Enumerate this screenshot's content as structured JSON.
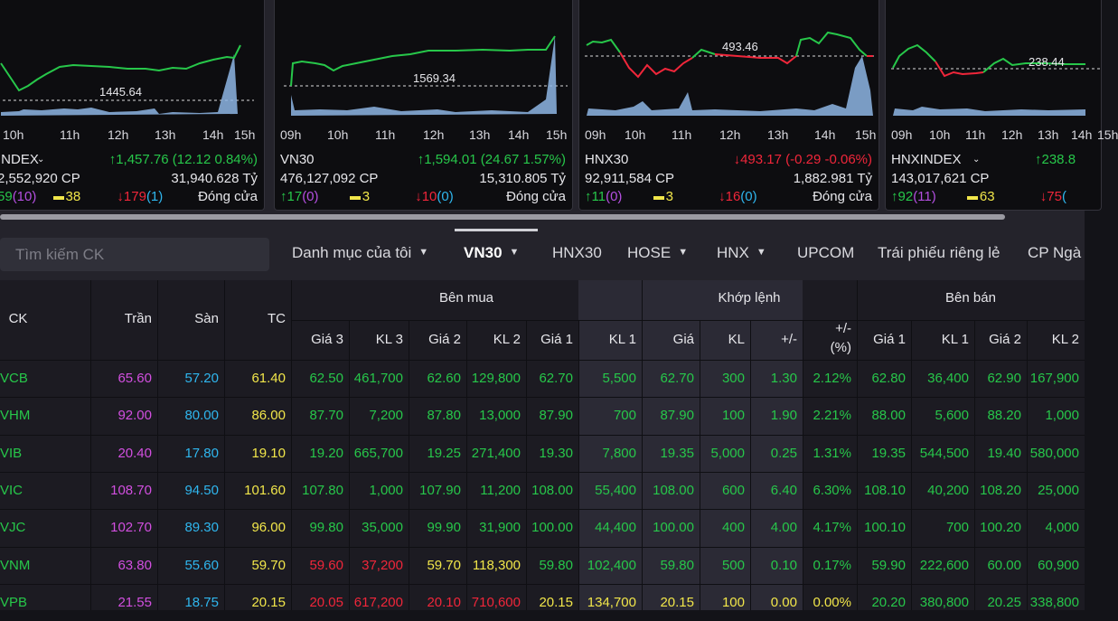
{
  "index_cards": [
    {
      "name": "INDEX",
      "times": [
        "10h",
        "11h",
        "12h",
        "13h",
        "14h",
        "15h"
      ],
      "ref_label": "1445.64",
      "change": "↑1,457.76 (12.12 0.84%)",
      "volume": "2,552,920 CP",
      "value": "31,940.628 Tỷ",
      "adv": "59",
      "adv_ceil": "(10)",
      "unch": "38",
      "dec": "↓179",
      "dec_floor": "(1)",
      "status": "Đóng cửa"
    },
    {
      "name": "VN30",
      "times": [
        "09h",
        "10h",
        "11h",
        "12h",
        "13h",
        "14h",
        "15h"
      ],
      "ref_label": "1569.34",
      "change": "↑1,594.01 (24.67 1.57%)",
      "volume": "476,127,092 CP",
      "value": "15,310.805 Tỷ",
      "adv": "↑17",
      "adv_ceil": "(0)",
      "unch": "3",
      "dec": "↓10",
      "dec_floor": "(0)",
      "status": "Đóng cửa"
    },
    {
      "name": "HNX30",
      "times": [
        "09h",
        "10h",
        "11h",
        "12h",
        "13h",
        "14h",
        "15h"
      ],
      "ref_label": "493.46",
      "change": "↓493.17 (-0.29 -0.06%)",
      "volume": "92,911,584 CP",
      "value": "1,882.981 Tỷ",
      "adv": "↑11",
      "adv_ceil": "(0)",
      "unch": "3",
      "dec": "↓16",
      "dec_floor": "(0)",
      "status": "Đóng cửa"
    },
    {
      "name": "HNXINDEX",
      "times": [
        "09h",
        "10h",
        "11h",
        "12h",
        "13h",
        "14h",
        "15h"
      ],
      "ref_label": "238.44",
      "change": "↑238.8",
      "volume": "143,017,621 CP",
      "value": "",
      "adv": "↑92",
      "adv_ceil": "(11)",
      "unch": "63",
      "dec": "↓75",
      "dec_floor": "(",
      "status": ""
    }
  ],
  "toolbar": {
    "search_placeholder": "Tìm kiếm CK",
    "tabs": [
      "Danh mục của tôi",
      "VN30",
      "HNX30",
      "HOSE",
      "HNX",
      "UPCOM",
      "Trái phiếu riêng lẻ",
      "CP Ngà"
    ]
  },
  "table": {
    "headers": {
      "ck": "CK",
      "ceil": "Trần",
      "floor": "Sàn",
      "ref": "TC",
      "buy_group": "Bên mua",
      "match_group": "Khớp lệnh",
      "sell_group": "Bên bán",
      "buy_cols": [
        "Giá 3",
        "KL 3",
        "Giá 2",
        "KL 2",
        "Giá 1",
        "KL 1"
      ],
      "match_cols": [
        "Giá",
        "KL",
        "+/-",
        "+/-",
        "(%)"
      ],
      "sell_cols": [
        "Giá 1",
        "KL 1",
        "Giá 2",
        "KL 2"
      ]
    },
    "rows": [
      {
        "sym": "VCB",
        "ceil": "65.60",
        "floor": "57.20",
        "ref": "61.40",
        "buy": [
          "62.50",
          "461,700",
          "62.60",
          "129,800",
          "62.70",
          "5,500"
        ],
        "match": [
          "62.70",
          "300",
          "1.30",
          "2.12%"
        ],
        "sell": [
          "62.80",
          "36,400",
          "62.90",
          "167,900"
        ],
        "color": "up",
        "buy_colors": [
          "up",
          "up",
          "up",
          "up",
          "up",
          "up"
        ],
        "match_color": "up",
        "sell_colors": [
          "up",
          "up",
          "up",
          "up"
        ]
      },
      {
        "sym": "VHM",
        "ceil": "92.00",
        "floor": "80.00",
        "ref": "86.00",
        "buy": [
          "87.70",
          "7,200",
          "87.80",
          "13,000",
          "87.90",
          "700"
        ],
        "match": [
          "87.90",
          "100",
          "1.90",
          "2.21%"
        ],
        "sell": [
          "88.00",
          "5,600",
          "88.20",
          "1,000"
        ],
        "color": "up",
        "buy_colors": [
          "up",
          "up",
          "up",
          "up",
          "up",
          "up"
        ],
        "match_color": "up",
        "sell_colors": [
          "up",
          "up",
          "up",
          "up"
        ]
      },
      {
        "sym": "VIB",
        "ceil": "20.40",
        "floor": "17.80",
        "ref": "19.10",
        "buy": [
          "19.20",
          "665,700",
          "19.25",
          "271,400",
          "19.30",
          "7,800"
        ],
        "match": [
          "19.35",
          "5,000",
          "0.25",
          "1.31%"
        ],
        "sell": [
          "19.35",
          "544,500",
          "19.40",
          "580,000"
        ],
        "color": "up",
        "buy_colors": [
          "up",
          "up",
          "up",
          "up",
          "up",
          "up"
        ],
        "match_color": "up",
        "sell_colors": [
          "up",
          "up",
          "up",
          "up"
        ]
      },
      {
        "sym": "VIC",
        "ceil": "108.70",
        "floor": "94.50",
        "ref": "101.60",
        "buy": [
          "107.80",
          "1,000",
          "107.90",
          "11,200",
          "108.00",
          "55,400"
        ],
        "match": [
          "108.00",
          "600",
          "6.40",
          "6.30%"
        ],
        "sell": [
          "108.10",
          "40,200",
          "108.20",
          "25,000"
        ],
        "color": "up",
        "buy_colors": [
          "up",
          "up",
          "up",
          "up",
          "up",
          "up"
        ],
        "match_color": "up",
        "sell_colors": [
          "up",
          "up",
          "up",
          "up"
        ]
      },
      {
        "sym": "VJC",
        "ceil": "102.70",
        "floor": "89.30",
        "ref": "96.00",
        "buy": [
          "99.80",
          "35,000",
          "99.90",
          "31,900",
          "100.00",
          "44,400"
        ],
        "match": [
          "100.00",
          "400",
          "4.00",
          "4.17%"
        ],
        "sell": [
          "100.10",
          "700",
          "100.20",
          "4,000"
        ],
        "color": "up",
        "buy_colors": [
          "up",
          "up",
          "up",
          "up",
          "up",
          "up"
        ],
        "match_color": "up",
        "sell_colors": [
          "up",
          "up",
          "up",
          "up"
        ]
      },
      {
        "sym": "VNM",
        "ceil": "63.80",
        "floor": "55.60",
        "ref": "59.70",
        "buy": [
          "59.60",
          "37,200",
          "59.70",
          "118,300",
          "59.80",
          "102,400"
        ],
        "match": [
          "59.80",
          "500",
          "0.10",
          "0.17%"
        ],
        "sell": [
          "59.90",
          "222,600",
          "60.00",
          "60,900"
        ],
        "color": "up",
        "buy_colors": [
          "dn",
          "dn",
          "ref",
          "ref",
          "up",
          "up"
        ],
        "match_color": "up",
        "sell_colors": [
          "up",
          "up",
          "up",
          "up"
        ]
      },
      {
        "sym": "VPB",
        "ceil": "21.55",
        "floor": "18.75",
        "ref": "20.15",
        "buy": [
          "20.05",
          "617,200",
          "20.10",
          "710,600",
          "20.15",
          "134,700"
        ],
        "match": [
          "20.15",
          "100",
          "0.00",
          "0.00%"
        ],
        "sell": [
          "20.20",
          "380,800",
          "20.25",
          "338,800"
        ],
        "color": "up",
        "buy_colors": [
          "dn",
          "dn",
          "dn",
          "dn",
          "ref",
          "ref"
        ],
        "match_color": "ref",
        "sell_colors": [
          "up",
          "up",
          "up",
          "up"
        ]
      }
    ]
  },
  "colors": {
    "up": "#27c74a",
    "down": "#f0263a",
    "ref": "#f1e64a",
    "ceil": "#d24fe0",
    "floor": "#2fb6ee"
  }
}
